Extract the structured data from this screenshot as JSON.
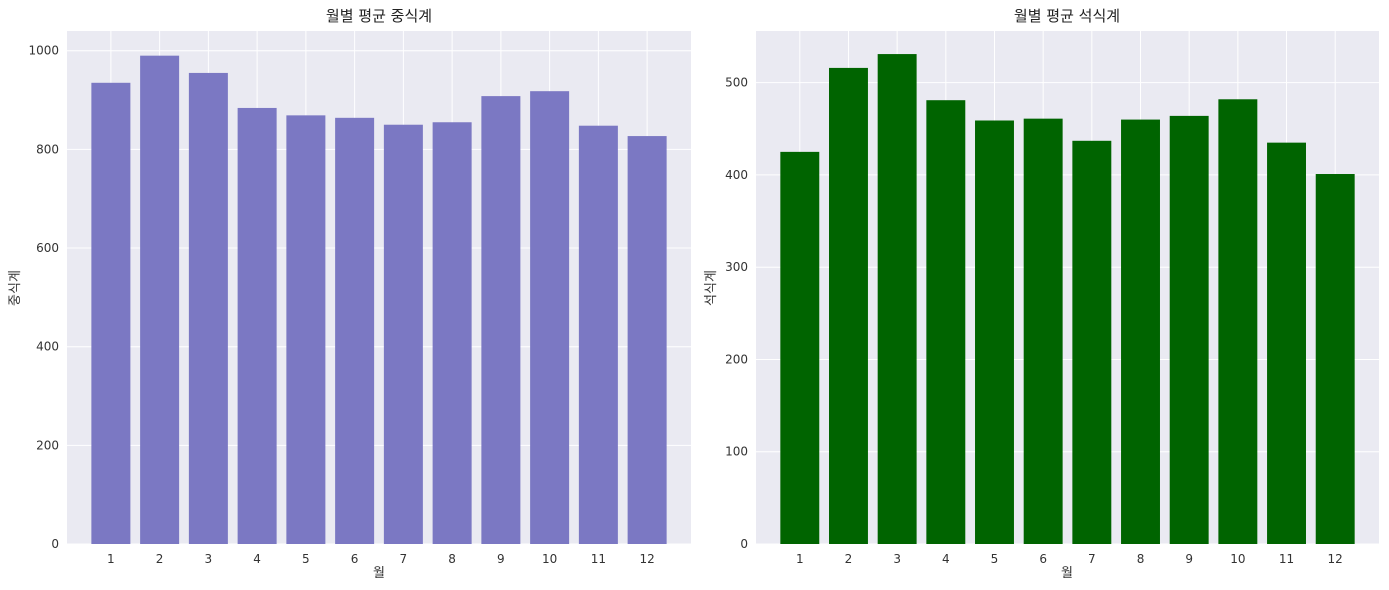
{
  "chart_data": [
    {
      "type": "bar",
      "title": "월별 평균 중식계",
      "xlabel": "월",
      "ylabel": "중식계",
      "categories": [
        "1",
        "2",
        "3",
        "4",
        "5",
        "6",
        "7",
        "8",
        "9",
        "10",
        "11",
        "12"
      ],
      "values": [
        935,
        990,
        955,
        884,
        869,
        864,
        850,
        855,
        908,
        918,
        848,
        827
      ],
      "ylim": [
        0,
        1040
      ],
      "yticks": [
        0,
        200,
        400,
        600,
        800,
        1000
      ],
      "color": "#7b78c3",
      "grid": true,
      "legend": "none"
    },
    {
      "type": "bar",
      "title": "월별 평균 석식계",
      "xlabel": "월",
      "ylabel": "석식계",
      "categories": [
        "1",
        "2",
        "3",
        "4",
        "5",
        "6",
        "7",
        "8",
        "9",
        "10",
        "11",
        "12"
      ],
      "values": [
        425,
        516,
        531,
        481,
        459,
        461,
        437,
        460,
        464,
        482,
        435,
        401
      ],
      "ylim": [
        0,
        556
      ],
      "yticks": [
        0,
        100,
        200,
        300,
        400,
        500
      ],
      "color": "#006400",
      "grid": true,
      "legend": "none"
    }
  ]
}
